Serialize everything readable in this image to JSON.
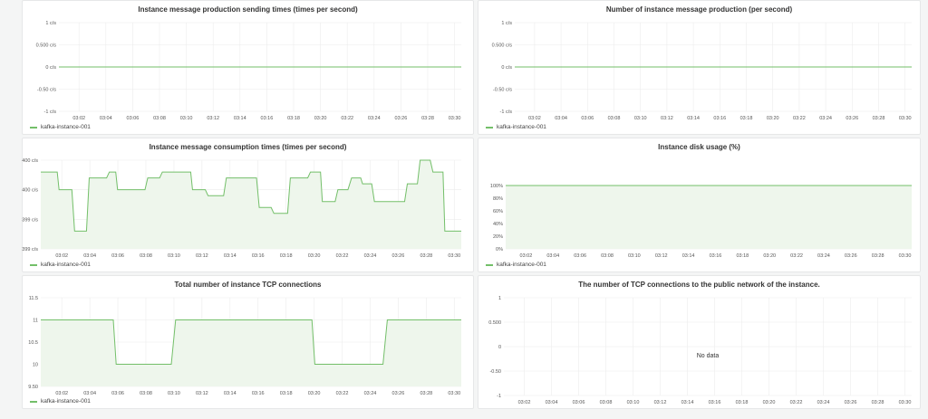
{
  "colors": {
    "series": "#73bf69",
    "fill": "#eef6ec",
    "grid": "#ececec",
    "axis": "#e2e2e2"
  },
  "chart_data": [
    {
      "type": "line",
      "title": "Instance message production sending times (times per second)",
      "x": [
        "03:02",
        "03:04",
        "03:06",
        "03:08",
        "03:10",
        "03:12",
        "03:14",
        "03:16",
        "03:18",
        "03:20",
        "03:22",
        "03:24",
        "03:26",
        "03:28",
        "03:30"
      ],
      "y_ticks": [
        "1 c/s",
        "0.500 c/s",
        "0 c/s",
        "-0.50 c/s",
        "-1 c/s"
      ],
      "ylim": [
        -1,
        1
      ],
      "series": [
        {
          "name": "kafka-instance-001",
          "values": [
            0,
            0,
            0,
            0,
            0,
            0,
            0,
            0,
            0,
            0,
            0,
            0,
            0,
            0,
            0
          ]
        }
      ]
    },
    {
      "type": "line",
      "title": "Number of instance message production (per second)",
      "x": [
        "03:02",
        "03:04",
        "03:06",
        "03:08",
        "03:10",
        "03:12",
        "03:14",
        "03:16",
        "03:18",
        "03:20",
        "03:22",
        "03:24",
        "03:26",
        "03:28",
        "03:30"
      ],
      "y_ticks": [
        "1 c/s",
        "0.500 c/s",
        "0 c/s",
        "-0.50 c/s",
        "-1 c/s"
      ],
      "ylim": [
        -1,
        1
      ],
      "series": [
        {
          "name": "kafka-instance-001",
          "values": [
            0,
            0,
            0,
            0,
            0,
            0,
            0,
            0,
            0,
            0,
            0,
            0,
            0,
            0,
            0
          ]
        }
      ]
    },
    {
      "type": "area",
      "title": "Instance message consumption times (times per second)",
      "x": [
        "03:02",
        "03:04",
        "03:06",
        "03:08",
        "03:10",
        "03:12",
        "03:14",
        "03:16",
        "03:18",
        "03:20",
        "03:22",
        "03:24",
        "03:26",
        "03:28",
        "03:30"
      ],
      "y_ticks": [
        "400 c/s",
        "400 c/s",
        "399 c/s",
        "399 c/s"
      ],
      "ylim": [
        398.8,
        400.3
      ],
      "points": [
        [
          0,
          400.1
        ],
        [
          0.9,
          400.1
        ],
        [
          1,
          399.8
        ],
        [
          1.7,
          399.8
        ],
        [
          1.85,
          399.1
        ],
        [
          2.5,
          399.1
        ],
        [
          2.65,
          400.0
        ],
        [
          3.6,
          400.0
        ],
        [
          3.75,
          400.1
        ],
        [
          4.1,
          400.1
        ],
        [
          4.2,
          399.8
        ],
        [
          5.7,
          399.8
        ],
        [
          5.85,
          400.0
        ],
        [
          6.5,
          400.0
        ],
        [
          6.65,
          400.1
        ],
        [
          8.2,
          400.1
        ],
        [
          8.3,
          399.8
        ],
        [
          9.0,
          399.8
        ],
        [
          9.15,
          399.7
        ],
        [
          10.0,
          399.7
        ],
        [
          10.15,
          400.0
        ],
        [
          11.8,
          400.0
        ],
        [
          11.95,
          399.5
        ],
        [
          12.6,
          399.5
        ],
        [
          12.75,
          399.4
        ],
        [
          13.5,
          399.4
        ],
        [
          13.65,
          400.0
        ],
        [
          14.6,
          400.0
        ],
        [
          14.75,
          400.1
        ],
        [
          15.3,
          400.1
        ],
        [
          15.4,
          399.6
        ],
        [
          16.1,
          399.6
        ],
        [
          16.25,
          399.8
        ],
        [
          16.8,
          399.8
        ],
        [
          17.0,
          400.0
        ],
        [
          17.5,
          400.0
        ],
        [
          17.6,
          399.9
        ],
        [
          18.1,
          399.9
        ],
        [
          18.25,
          399.6
        ],
        [
          19.9,
          399.6
        ],
        [
          20.05,
          399.9
        ],
        [
          20.6,
          399.9
        ],
        [
          20.75,
          400.3
        ],
        [
          21.3,
          400.3
        ],
        [
          21.45,
          400.1
        ],
        [
          22.0,
          400.1
        ],
        [
          22.1,
          399.1
        ],
        [
          22.6,
          399.1
        ],
        [
          23.0,
          399.1
        ]
      ],
      "series_name": "kafka-instance-001"
    },
    {
      "type": "area",
      "title": "Instance disk usage (%)",
      "x": [
        "03:02",
        "03:04",
        "03:06",
        "03:08",
        "03:10",
        "03:12",
        "03:14",
        "03:16",
        "03:18",
        "03:20",
        "03:22",
        "03:24",
        "03:26",
        "03:28",
        "03:30"
      ],
      "y_ticks": [
        "100%",
        "80%",
        "60%",
        "40%",
        "20%",
        "0%"
      ],
      "ylim": [
        0,
        100
      ],
      "series": [
        {
          "name": "kafka-instance-001",
          "values": [
            100,
            100,
            100,
            100,
            100,
            100,
            100,
            100,
            100,
            100,
            100,
            100,
            100,
            100,
            100
          ]
        }
      ]
    },
    {
      "type": "area",
      "title": "Total number of instance TCP connections",
      "x": [
        "03:02",
        "03:04",
        "03:06",
        "03:08",
        "03:10",
        "03:12",
        "03:14",
        "03:16",
        "03:18",
        "03:20",
        "03:22",
        "03:24",
        "03:26",
        "03:28",
        "03:30"
      ],
      "y_ticks": [
        "11.5",
        "11",
        "10.5",
        "10",
        "9.50"
      ],
      "ylim": [
        9.5,
        11.5
      ],
      "points": [
        [
          0,
          11
        ],
        [
          5,
          11
        ],
        [
          5.2,
          10
        ],
        [
          9,
          10
        ],
        [
          9.3,
          11
        ],
        [
          18.7,
          11
        ],
        [
          18.9,
          10
        ],
        [
          23.6,
          10
        ],
        [
          23.9,
          11
        ],
        [
          29,
          11
        ]
      ],
      "series_name": "kafka-instance-001"
    },
    {
      "type": "line",
      "title": "The number of TCP connections to the public network of the instance.",
      "x": [
        "03:02",
        "03:04",
        "03:06",
        "03:08",
        "03:10",
        "03:12",
        "03:14",
        "03:16",
        "03:18",
        "03:20",
        "03:22",
        "03:24",
        "03:26",
        "03:28",
        "03:30"
      ],
      "y_ticks": [
        "1",
        "0.500",
        "0",
        "-0.50",
        "-1"
      ],
      "ylim": [
        -1,
        1
      ],
      "no_data_text": "No data"
    }
  ]
}
